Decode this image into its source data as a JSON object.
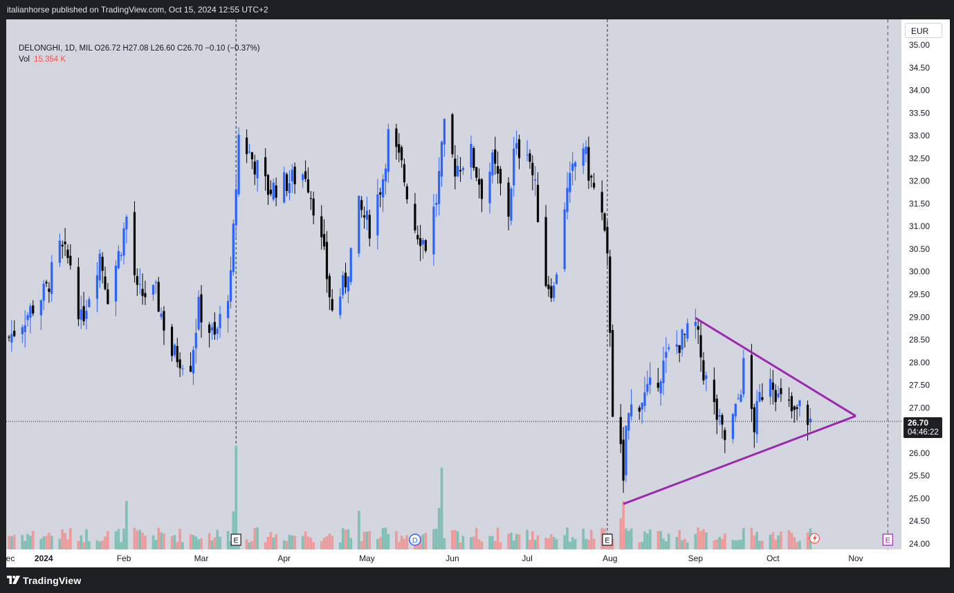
{
  "header": {
    "publisher": "italianhorse published on TradingView.com, Oct 15, 2024 12:55 UTC+2"
  },
  "legend": {
    "symbol_line": "DELONGHI, 1D, MIL  O26.72  H27.08  L26.60  C26.70  −0.10 (−0.37%)",
    "vol_label": "Vol",
    "vol_value": "15.354 K"
  },
  "price_axis": {
    "currency": "EUR",
    "last_price": "26.70",
    "countdown": "04:46:22"
  },
  "footer": {
    "brand": "TradingView"
  },
  "colors": {
    "up": "#2962ff",
    "down": "#000000",
    "vol_up": "#7fbfb5",
    "vol_down": "#ef9a9a",
    "pattern": "#9c27b0",
    "earnings_marker": "#9c27b0"
  },
  "chart_data": {
    "type": "candlestick",
    "title": "DELONGHI, 1D, MIL",
    "ylabel": "EUR",
    "ylim": [
      23.85,
      35.2
    ],
    "y_ticks": [
      "24.00",
      "24.50",
      "25.00",
      "25.50",
      "26.00",
      "26.50",
      "27.00",
      "27.50",
      "28.00",
      "28.50",
      "29.00",
      "29.50",
      "30.00",
      "30.50",
      "31.00",
      "31.50",
      "32.00",
      "32.50",
      "33.00",
      "33.50",
      "34.00",
      "34.50",
      "35.00"
    ],
    "x_ticks": [
      {
        "label": "ec",
        "date": "2023-12-21"
      },
      {
        "label": "2024",
        "date": "2024-01-02"
      },
      {
        "label": "Feb",
        "date": "2024-02-01"
      },
      {
        "label": "Mar",
        "date": "2024-03-01"
      },
      {
        "label": "Apr",
        "date": "2024-04-01"
      },
      {
        "label": "May",
        "date": "2024-05-02"
      },
      {
        "label": "Jun",
        "date": "2024-06-03"
      },
      {
        "label": "Jul",
        "date": "2024-07-01"
      },
      {
        "label": "Aug",
        "date": "2024-08-01"
      },
      {
        "label": "Sep",
        "date": "2024-09-02"
      },
      {
        "label": "Oct",
        "date": "2024-10-01"
      },
      {
        "label": "Nov",
        "date": "2024-11-01"
      }
    ],
    "last_price": 26.7,
    "path_keypoints": [
      {
        "date": "2023-12-20",
        "price": 28.55
      },
      {
        "date": "2024-01-03",
        "price": 29.6
      },
      {
        "date": "2024-01-08",
        "price": 30.5
      },
      {
        "date": "2024-01-12",
        "price": 30.2
      },
      {
        "date": "2024-01-16",
        "price": 28.9
      },
      {
        "date": "2024-01-23",
        "price": 30.4
      },
      {
        "date": "2024-01-26",
        "price": 29.5
      },
      {
        "date": "2024-01-31",
        "price": 30.6
      },
      {
        "date": "2024-02-02",
        "price": 31.2
      },
      {
        "date": "2024-02-06",
        "price": 29.5
      },
      {
        "date": "2024-02-13",
        "price": 29.5
      },
      {
        "date": "2024-02-19",
        "price": 28.2
      },
      {
        "date": "2024-02-26",
        "price": 28.0
      },
      {
        "date": "2024-02-29",
        "price": 29.2
      },
      {
        "date": "2024-03-06",
        "price": 28.5
      },
      {
        "date": "2024-03-12",
        "price": 29.8
      },
      {
        "date": "2024-03-14",
        "price": 31.9
      },
      {
        "date": "2024-03-15",
        "price": 33.0
      },
      {
        "date": "2024-03-19",
        "price": 32.6
      },
      {
        "date": "2024-03-26",
        "price": 31.8
      },
      {
        "date": "2024-04-03",
        "price": 32.0
      },
      {
        "date": "2024-04-09",
        "price": 32.2
      },
      {
        "date": "2024-04-12",
        "price": 31.5
      },
      {
        "date": "2024-04-16",
        "price": 30.3
      },
      {
        "date": "2024-04-19",
        "price": 29.1
      },
      {
        "date": "2024-04-24",
        "price": 29.8
      },
      {
        "date": "2024-04-29",
        "price": 31.4
      },
      {
        "date": "2024-05-03",
        "price": 31.0
      },
      {
        "date": "2024-05-08",
        "price": 32.1
      },
      {
        "date": "2024-05-10",
        "price": 33.0
      },
      {
        "date": "2024-05-15",
        "price": 32.3
      },
      {
        "date": "2024-05-20",
        "price": 31.0
      },
      {
        "date": "2024-05-24",
        "price": 30.6
      },
      {
        "date": "2024-05-28",
        "price": 31.6
      },
      {
        "date": "2024-05-31",
        "price": 33.1
      },
      {
        "date": "2024-06-04",
        "price": 32.3
      },
      {
        "date": "2024-06-10",
        "price": 32.6
      },
      {
        "date": "2024-06-14",
        "price": 31.8
      },
      {
        "date": "2024-06-18",
        "price": 32.4
      },
      {
        "date": "2024-06-24",
        "price": 31.3
      },
      {
        "date": "2024-06-26",
        "price": 32.6
      },
      {
        "date": "2024-07-01",
        "price": 32.8
      },
      {
        "date": "2024-07-04",
        "price": 31.8
      },
      {
        "date": "2024-07-08",
        "price": 29.8
      },
      {
        "date": "2024-07-11",
        "price": 29.6
      },
      {
        "date": "2024-07-15",
        "price": 31.5
      },
      {
        "date": "2024-07-19",
        "price": 32.4
      },
      {
        "date": "2024-07-22",
        "price": 32.8
      },
      {
        "date": "2024-07-24",
        "price": 32.2
      },
      {
        "date": "2024-07-29",
        "price": 31.2
      },
      {
        "date": "2024-07-31",
        "price": 30.2
      },
      {
        "date": "2024-08-01",
        "price": 28.8
      },
      {
        "date": "2024-08-02",
        "price": 27.0
      },
      {
        "date": "2024-08-05",
        "price": 26.0
      },
      {
        "date": "2024-08-06",
        "price": 25.2
      },
      {
        "date": "2024-08-07",
        "price": 26.6
      },
      {
        "date": "2024-08-09",
        "price": 27.0
      },
      {
        "date": "2024-08-15",
        "price": 27.3
      },
      {
        "date": "2024-08-20",
        "price": 27.8
      },
      {
        "date": "2024-08-23",
        "price": 28.2
      },
      {
        "date": "2024-08-28",
        "price": 28.5
      },
      {
        "date": "2024-09-02",
        "price": 28.8
      },
      {
        "date": "2024-09-05",
        "price": 27.8
      },
      {
        "date": "2024-09-09",
        "price": 27.0
      },
      {
        "date": "2024-09-11",
        "price": 26.6
      },
      {
        "date": "2024-09-13",
        "price": 26.3
      },
      {
        "date": "2024-09-17",
        "price": 26.9
      },
      {
        "date": "2024-09-19",
        "price": 27.5
      },
      {
        "date": "2024-09-20",
        "price": 27.9
      },
      {
        "date": "2024-09-24",
        "price": 26.6
      },
      {
        "date": "2024-09-26",
        "price": 27.2
      },
      {
        "date": "2024-09-30",
        "price": 27.8
      },
      {
        "date": "2024-10-03",
        "price": 27.2
      },
      {
        "date": "2024-10-07",
        "price": 27.0
      },
      {
        "date": "2024-10-09",
        "price": 26.8
      },
      {
        "date": "2024-10-11",
        "price": 27.0
      },
      {
        "date": "2024-10-15",
        "price": 26.7
      }
    ],
    "triangle": [
      {
        "date": "2024-09-02",
        "price": 28.98
      },
      {
        "date": "2024-11-01",
        "price": 26.82
      },
      {
        "date": "2024-08-06",
        "price": 24.88
      }
    ],
    "events": [
      {
        "type": "E",
        "date": "2024-03-14"
      },
      {
        "type": "D",
        "date": "2024-05-20"
      },
      {
        "type": "E",
        "date": "2024-07-31"
      },
      {
        "type": "E",
        "date": "2024-11-13",
        "future": true
      }
    ],
    "volume_notes": "relative volume only; spikes around 2024-03-14, 2024-05-30 and 2024-08-06"
  }
}
